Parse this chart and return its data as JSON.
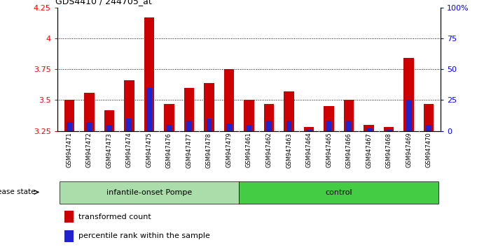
{
  "title": "GDS4410 / 244705_at",
  "samples": [
    "GSM947471",
    "GSM947472",
    "GSM947473",
    "GSM947474",
    "GSM947475",
    "GSM947476",
    "GSM947477",
    "GSM947478",
    "GSM947479",
    "GSM947461",
    "GSM947462",
    "GSM947463",
    "GSM947464",
    "GSM947465",
    "GSM947466",
    "GSM947467",
    "GSM947468",
    "GSM947469",
    "GSM947470"
  ],
  "transformed_count": [
    3.5,
    3.56,
    3.42,
    3.66,
    4.17,
    3.47,
    3.6,
    3.64,
    3.75,
    3.5,
    3.47,
    3.57,
    3.28,
    3.45,
    3.5,
    3.3,
    3.28,
    3.84,
    3.47
  ],
  "percentile_rank": [
    7,
    7,
    5,
    10,
    35,
    5,
    8,
    10,
    6,
    5,
    8,
    8,
    1,
    8,
    8,
    2,
    1,
    25,
    5
  ],
  "bar_color": "#cc0000",
  "blue_color": "#2222cc",
  "baseline": 3.25,
  "ylim_left": [
    3.25,
    4.25
  ],
  "ylim_right": [
    0,
    100
  ],
  "yticks_left": [
    3.25,
    3.5,
    3.75,
    4.0,
    4.25
  ],
  "ytick_labels_left": [
    "3.25",
    "3.5",
    "3.75",
    "4",
    "4.25"
  ],
  "yticks_right": [
    0,
    25,
    50,
    75,
    100
  ],
  "ytick_labels_right": [
    "0",
    "25",
    "50",
    "75",
    "100%"
  ],
  "group1_label": "infantile-onset Pompe",
  "group2_label": "control",
  "group1_count": 9,
  "group2_count": 10,
  "disease_state_label": "disease state",
  "legend_red": "transformed count",
  "legend_blue": "percentile rank within the sample",
  "group1_color": "#aaddaa",
  "group2_color": "#44cc44",
  "bar_width": 0.5,
  "gridline_color": "#000000",
  "bg_color": "#cccccc",
  "fig_bg": "#ffffff"
}
